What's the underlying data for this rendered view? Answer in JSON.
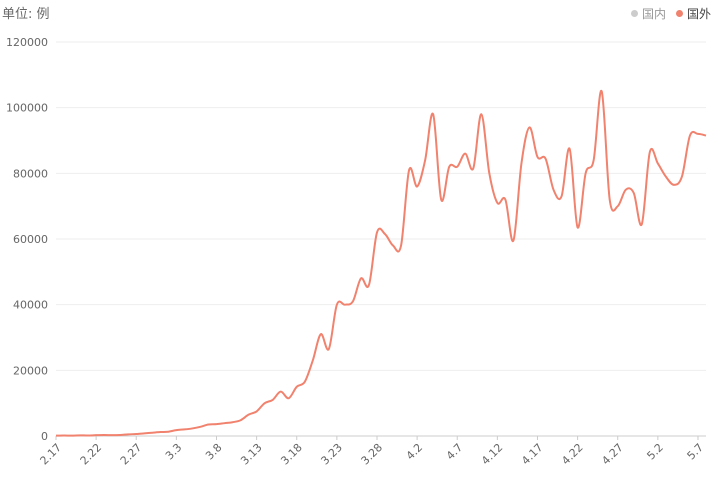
{
  "unit_label": "单位: 例",
  "legend": [
    {
      "name": "国内",
      "color": "#cccccc",
      "active": false
    },
    {
      "name": "国外",
      "color": "#f0826e",
      "active": true
    }
  ],
  "chart_data": {
    "type": "line",
    "title": "",
    "xlabel": "",
    "ylabel": "单位: 例",
    "ylim": [
      0,
      120000
    ],
    "yticks": [
      0,
      20000,
      40000,
      60000,
      80000,
      100000,
      120000
    ],
    "xtick_labels": [
      "2.17",
      "2.22",
      "2.27",
      "3.3",
      "3.8",
      "3.13",
      "3.18",
      "3.23",
      "3.28",
      "4.2",
      "4.7",
      "4.12",
      "4.17",
      "4.22",
      "4.27",
      "5.2",
      "5.7"
    ],
    "grid": true,
    "legend_position": "top-right",
    "series": [
      {
        "name": "国外",
        "color": "#f0826e",
        "x": [
          "2.17",
          "2.18",
          "2.19",
          "2.20",
          "2.21",
          "2.22",
          "2.23",
          "2.24",
          "2.25",
          "2.26",
          "2.27",
          "2.28",
          "2.29",
          "3.1",
          "3.2",
          "3.3",
          "3.4",
          "3.5",
          "3.6",
          "3.7",
          "3.8",
          "3.9",
          "3.10",
          "3.11",
          "3.12",
          "3.13",
          "3.14",
          "3.15",
          "3.16",
          "3.17",
          "3.18",
          "3.19",
          "3.20",
          "3.21",
          "3.22",
          "3.23",
          "3.24",
          "3.25",
          "3.26",
          "3.27",
          "3.28",
          "3.29",
          "3.30",
          "3.31",
          "4.1",
          "4.2",
          "4.3",
          "4.4",
          "4.5",
          "4.6",
          "4.7",
          "4.8",
          "4.9",
          "4.10",
          "4.11",
          "4.12",
          "4.13",
          "4.14",
          "4.15",
          "4.16",
          "4.17",
          "4.18",
          "4.19",
          "4.20",
          "4.21",
          "4.22",
          "4.23",
          "4.24",
          "4.25",
          "4.26",
          "4.27",
          "4.28",
          "4.29",
          "4.30",
          "5.1",
          "5.2",
          "5.3",
          "5.4",
          "5.5",
          "5.6",
          "5.7",
          "5.8"
        ],
        "values": [
          100,
          150,
          100,
          200,
          150,
          250,
          300,
          250,
          300,
          500,
          600,
          800,
          1000,
          1200,
          1300,
          1800,
          2000,
          2300,
          2800,
          3500,
          3600,
          3900,
          4200,
          4800,
          6500,
          7500,
          10000,
          11000,
          13500,
          11500,
          15000,
          16500,
          23000,
          31000,
          26500,
          40000,
          40000,
          41000,
          48000,
          46000,
          62000,
          61500,
          58000,
          58000,
          81000,
          76000,
          84000,
          98000,
          72000,
          82000,
          82000,
          86000,
          81500,
          98000,
          80000,
          71000,
          72000,
          59500,
          83000,
          94000,
          85000,
          84500,
          75000,
          73000,
          87500,
          63500,
          80000,
          84000,
          105000,
          72000,
          70000,
          75000,
          74000,
          64500,
          86500,
          83000,
          79000,
          76500,
          79000,
          91500,
          92000,
          91500
        ]
      }
    ]
  }
}
